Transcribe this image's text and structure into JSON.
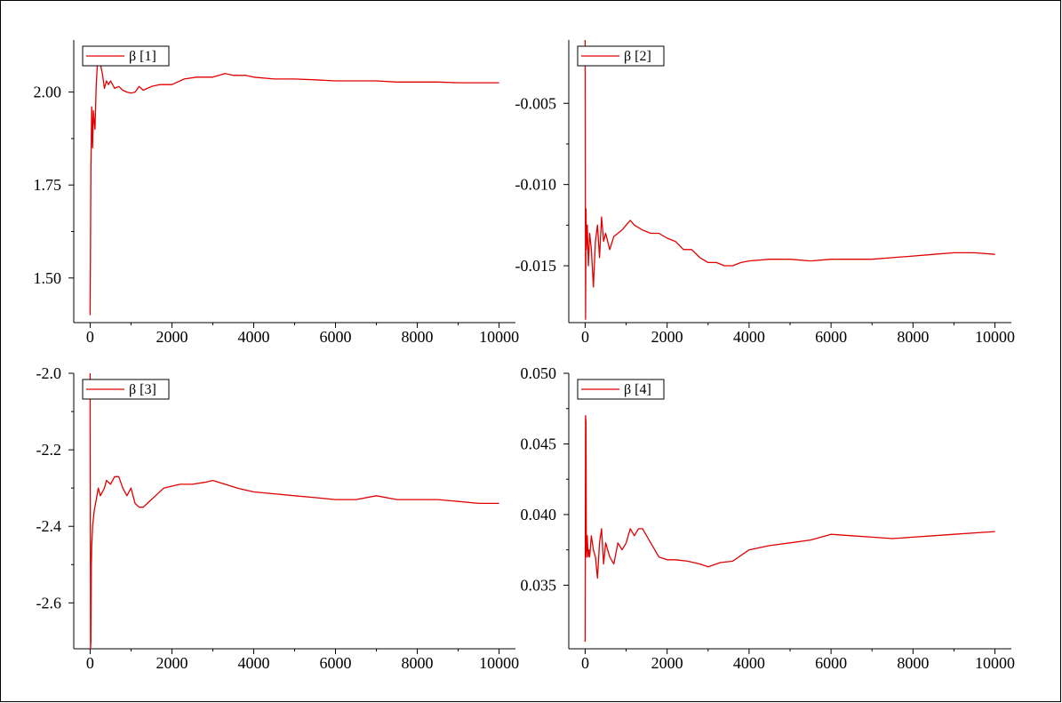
{
  "chart_data": [
    {
      "type": "line",
      "title": "",
      "xlabel": "",
      "ylabel": "",
      "xlim": [
        -400,
        10400
      ],
      "ylim": [
        1.38,
        2.14
      ],
      "x_ticks": [
        0,
        2000,
        4000,
        6000,
        8000,
        10000
      ],
      "x_tick_labels": [
        "0",
        "2000",
        "4000",
        "6000",
        "8000",
        "10000"
      ],
      "y_ticks": [
        1.5,
        1.75,
        2.0
      ],
      "y_tick_labels": [
        "1.50",
        "1.75",
        "2.00"
      ],
      "legend": "top-left",
      "grid": false,
      "series": [
        {
          "name": "β [1]",
          "color": "#e00000",
          "x": [
            0,
            20,
            40,
            60,
            80,
            100,
            120,
            150,
            180,
            220,
            260,
            300,
            350,
            400,
            450,
            500,
            600,
            700,
            800,
            900,
            1000,
            1100,
            1200,
            1300,
            1500,
            1700,
            2000,
            2300,
            2600,
            3000,
            3300,
            3500,
            3800,
            4000,
            4500,
            5000,
            5500,
            6000,
            6500,
            7000,
            7500,
            8000,
            8500,
            9000,
            9500,
            10000
          ],
          "y": [
            1.4,
            1.8,
            1.96,
            1.85,
            1.95,
            1.92,
            1.9,
            2.02,
            2.08,
            2.11,
            2.07,
            2.05,
            2.01,
            2.03,
            2.02,
            2.03,
            2.01,
            2.015,
            2.005,
            2.0,
            1.997,
            2.0,
            2.015,
            2.005,
            2.015,
            2.02,
            2.02,
            2.035,
            2.04,
            2.04,
            2.05,
            2.045,
            2.045,
            2.04,
            2.035,
            2.035,
            2.033,
            2.03,
            2.03,
            2.03,
            2.027,
            2.027,
            2.027,
            2.025,
            2.025,
            2.025
          ]
        }
      ]
    },
    {
      "type": "line",
      "title": "",
      "xlabel": "",
      "ylabel": "",
      "xlim": [
        -400,
        10400
      ],
      "ylim": [
        -0.0185,
        -0.0011
      ],
      "x_ticks": [
        0,
        2000,
        4000,
        6000,
        8000,
        10000
      ],
      "x_tick_labels": [
        "0",
        "2000",
        "4000",
        "6000",
        "8000",
        "10000"
      ],
      "y_ticks": [
        -0.015,
        -0.01,
        -0.005
      ],
      "y_tick_labels": [
        "-0.015",
        "-0.010",
        "-0.005"
      ],
      "legend": "top-left",
      "grid": false,
      "series": [
        {
          "name": "β [2]",
          "color": "#e00000",
          "x": [
            0,
            10,
            20,
            30,
            50,
            80,
            110,
            150,
            200,
            250,
            300,
            350,
            400,
            450,
            500,
            600,
            700,
            800,
            900,
            1000,
            1100,
            1200,
            1400,
            1600,
            1800,
            2000,
            2200,
            2400,
            2600,
            2800,
            3000,
            3200,
            3400,
            3600,
            3800,
            4000,
            4500,
            5000,
            5500,
            6000,
            6500,
            7000,
            7500,
            8000,
            8500,
            9000,
            9500,
            10000
          ],
          "y": [
            -0.0011,
            -0.0183,
            -0.0115,
            -0.014,
            -0.0125,
            -0.015,
            -0.013,
            -0.014,
            -0.0163,
            -0.0135,
            -0.0125,
            -0.0145,
            -0.012,
            -0.0135,
            -0.013,
            -0.014,
            -0.0132,
            -0.013,
            -0.0128,
            -0.0125,
            -0.0122,
            -0.0125,
            -0.0128,
            -0.013,
            -0.013,
            -0.0133,
            -0.0135,
            -0.014,
            -0.014,
            -0.0145,
            -0.0148,
            -0.0148,
            -0.015,
            -0.015,
            -0.0148,
            -0.0147,
            -0.0146,
            -0.0146,
            -0.0147,
            -0.0146,
            -0.0146,
            -0.0146,
            -0.0145,
            -0.0144,
            -0.0143,
            -0.0142,
            -0.0142,
            -0.0143
          ]
        }
      ]
    },
    {
      "type": "line",
      "title": "",
      "xlabel": "",
      "ylabel": "",
      "xlim": [
        -400,
        10400
      ],
      "ylim": [
        -2.72,
        -2.0
      ],
      "x_ticks": [
        0,
        2000,
        4000,
        6000,
        8000,
        10000
      ],
      "x_tick_labels": [
        "0",
        "2000",
        "4000",
        "6000",
        "8000",
        "10000"
      ],
      "y_ticks": [
        -2.6,
        -2.4,
        -2.2,
        -2.0
      ],
      "y_tick_labels": [
        "-2.6",
        "-2.4",
        "-2.2",
        "-2.0"
      ],
      "legend": "top-left",
      "grid": false,
      "series": [
        {
          "name": "β [3]",
          "color": "#e00000",
          "x": [
            0,
            10,
            20,
            30,
            40,
            60,
            80,
            100,
            150,
            200,
            250,
            300,
            350,
            400,
            500,
            600,
            700,
            800,
            900,
            1000,
            1100,
            1200,
            1300,
            1400,
            1600,
            1800,
            2000,
            2200,
            2500,
            2800,
            3000,
            3300,
            3600,
            4000,
            4500,
            5000,
            5500,
            6000,
            6500,
            7000,
            7500,
            8000,
            8500,
            9000,
            9500,
            10000
          ],
          "y": [
            -2.0,
            -2.72,
            -2.7,
            -2.5,
            -2.45,
            -2.4,
            -2.38,
            -2.36,
            -2.33,
            -2.3,
            -2.32,
            -2.31,
            -2.3,
            -2.28,
            -2.29,
            -2.27,
            -2.27,
            -2.3,
            -2.32,
            -2.3,
            -2.34,
            -2.35,
            -2.35,
            -2.34,
            -2.32,
            -2.3,
            -2.295,
            -2.29,
            -2.29,
            -2.285,
            -2.28,
            -2.29,
            -2.3,
            -2.31,
            -2.315,
            -2.32,
            -2.325,
            -2.33,
            -2.33,
            -2.32,
            -2.33,
            -2.33,
            -2.33,
            -2.335,
            -2.34,
            -2.34
          ]
        }
      ]
    },
    {
      "type": "line",
      "title": "",
      "xlabel": "",
      "ylabel": "",
      "xlim": [
        -400,
        10400
      ],
      "ylim": [
        0.0305,
        0.05
      ],
      "x_ticks": [
        0,
        2000,
        4000,
        6000,
        8000,
        10000
      ],
      "x_tick_labels": [
        "0",
        "2000",
        "4000",
        "6000",
        "8000",
        "10000"
      ],
      "y_ticks": [
        0.035,
        0.04,
        0.045,
        0.05
      ],
      "y_tick_labels": [
        "0.035",
        "0.040",
        "0.045",
        "0.050"
      ],
      "legend": "top-left",
      "grid": false,
      "series": [
        {
          "name": "β [4]",
          "color": "#e00000",
          "x": [
            0,
            10,
            20,
            30,
            50,
            70,
            90,
            110,
            150,
            200,
            250,
            300,
            350,
            400,
            450,
            500,
            600,
            700,
            800,
            900,
            1000,
            1100,
            1200,
            1300,
            1400,
            1500,
            1600,
            1800,
            2000,
            2200,
            2500,
            2800,
            3000,
            3300,
            3600,
            4000,
            4500,
            5000,
            5500,
            6000,
            6500,
            7000,
            7500,
            8000,
            8500,
            9000,
            9500,
            10000
          ],
          "y": [
            0.031,
            0.047,
            0.0465,
            0.037,
            0.0385,
            0.037,
            0.0375,
            0.037,
            0.0385,
            0.0375,
            0.037,
            0.0355,
            0.038,
            0.039,
            0.0365,
            0.038,
            0.037,
            0.0365,
            0.038,
            0.0375,
            0.038,
            0.039,
            0.0385,
            0.039,
            0.039,
            0.0385,
            0.038,
            0.037,
            0.0368,
            0.0368,
            0.0367,
            0.0365,
            0.0363,
            0.0366,
            0.0367,
            0.0375,
            0.0378,
            0.038,
            0.0382,
            0.0386,
            0.0385,
            0.0384,
            0.0383,
            0.0384,
            0.0385,
            0.0386,
            0.0387,
            0.0388
          ]
        }
      ]
    }
  ]
}
